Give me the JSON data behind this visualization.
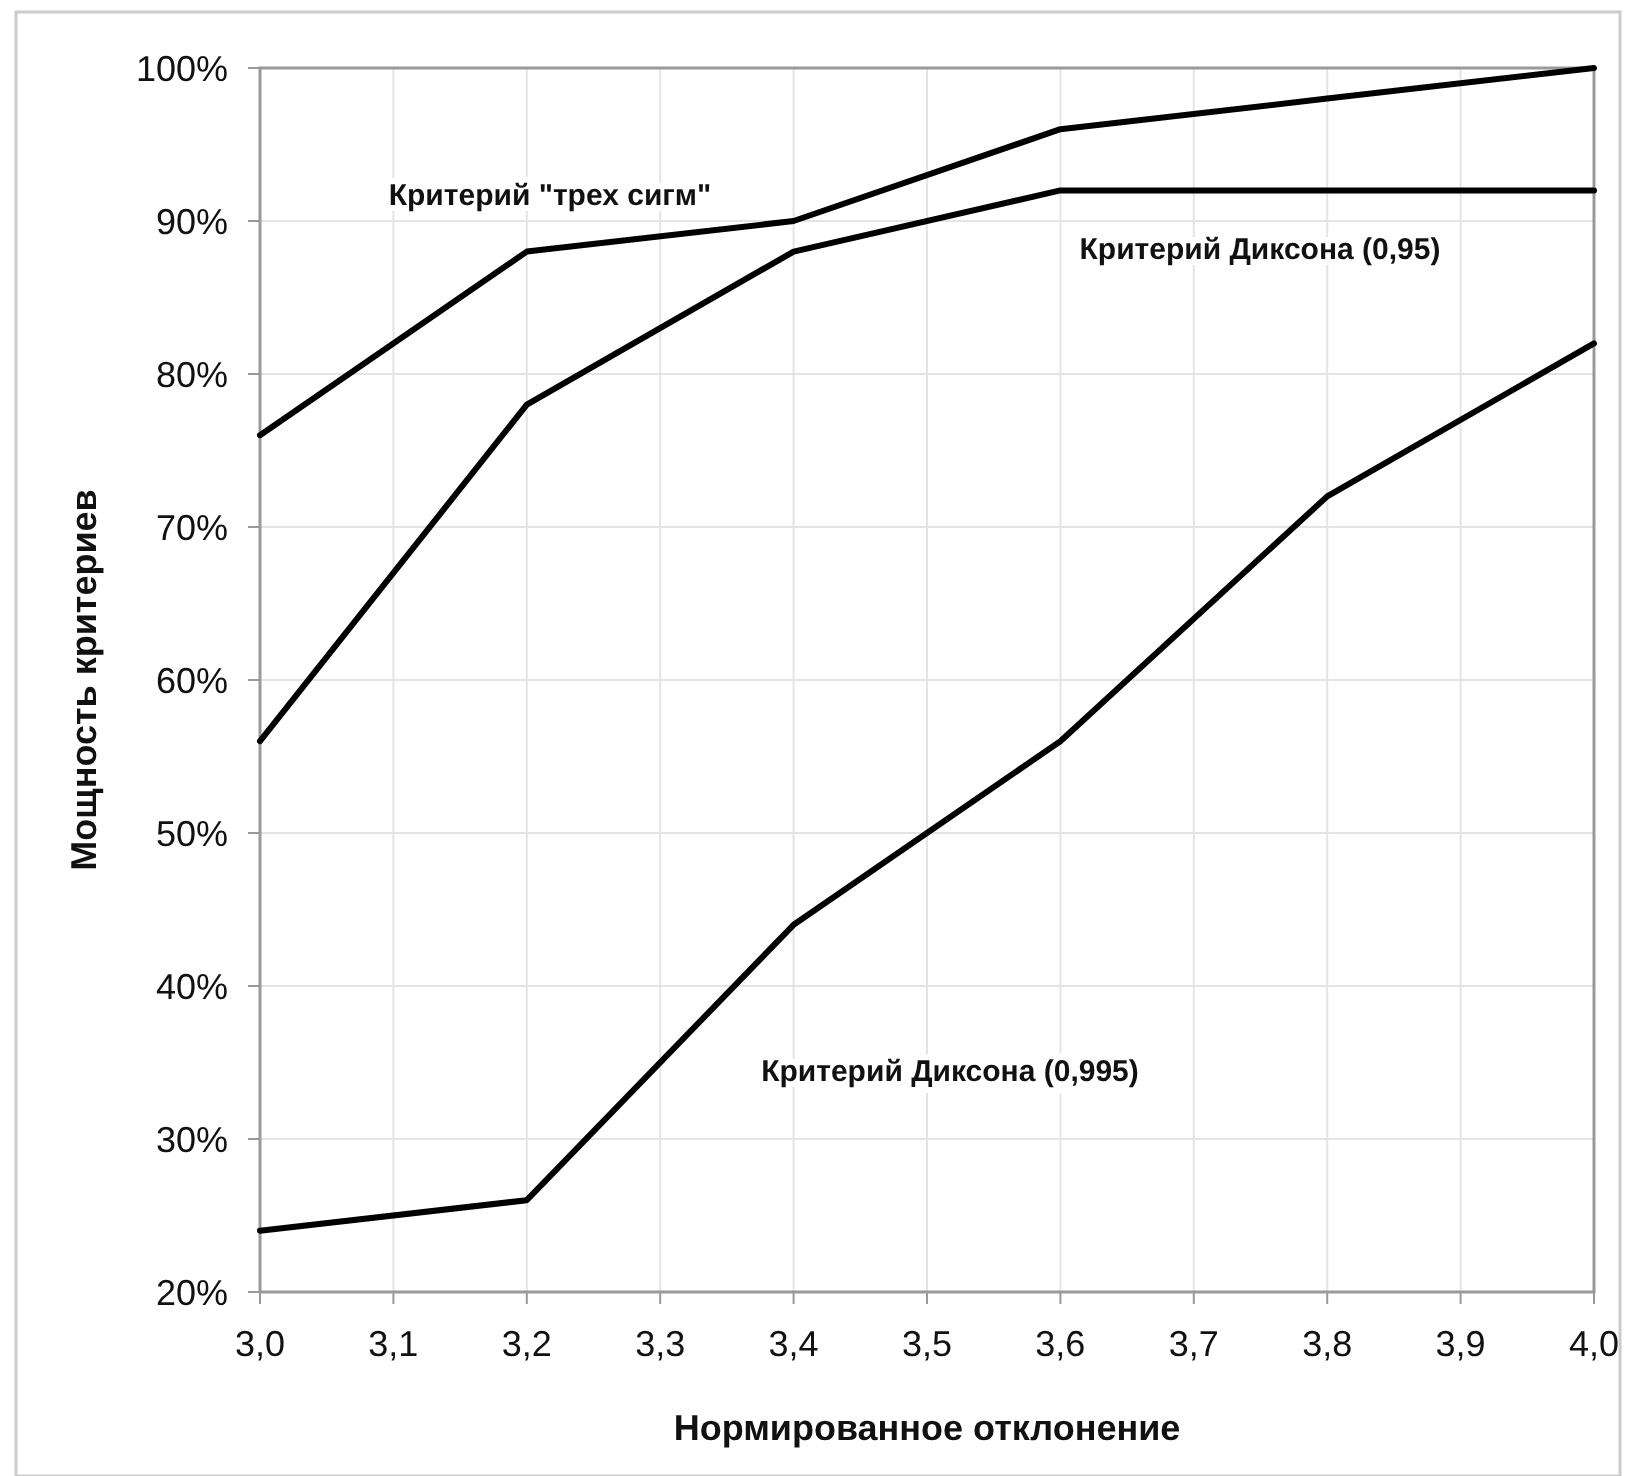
{
  "chart_data": {
    "type": "line",
    "xlabel": "Нормированное отклонение",
    "ylabel": "Мощность критериев",
    "x": [
      3.0,
      3.2,
      3.4,
      3.6,
      3.8,
      4.0
    ],
    "series": [
      {
        "name": "Критерий \"трех сигм\"",
        "color": "#000000",
        "values": [
          76,
          88,
          90,
          96,
          98,
          100
        ]
      },
      {
        "name": "Критерий Диксона (0,95)",
        "color": "#000000",
        "values": [
          56,
          78,
          88,
          92,
          92,
          92
        ]
      },
      {
        "name": "Критерий Диксона (0,995)",
        "color": "#000000",
        "values": [
          24,
          26,
          44,
          56,
          72,
          82
        ]
      }
    ],
    "xlim": [
      3.0,
      4.0
    ],
    "xticks": [
      {
        "value": 3.0,
        "label": "3,0"
      },
      {
        "value": 3.1,
        "label": "3,1"
      },
      {
        "value": 3.2,
        "label": "3,2"
      },
      {
        "value": 3.3,
        "label": "3,3"
      },
      {
        "value": 3.4,
        "label": "3,4"
      },
      {
        "value": 3.5,
        "label": "3,5"
      },
      {
        "value": 3.6,
        "label": "3,6"
      },
      {
        "value": 3.7,
        "label": "3,7"
      },
      {
        "value": 3.8,
        "label": "3,8"
      },
      {
        "value": 3.9,
        "label": "3,9"
      },
      {
        "value": 4.0,
        "label": "4,0"
      }
    ],
    "ylim": [
      20,
      100
    ],
    "yticks": [
      {
        "value": 20,
        "label": "20%"
      },
      {
        "value": 30,
        "label": "30%"
      },
      {
        "value": 40,
        "label": "40%"
      },
      {
        "value": 50,
        "label": "50%"
      },
      {
        "value": 60,
        "label": "60%"
      },
      {
        "value": 70,
        "label": "70%"
      },
      {
        "value": 80,
        "label": "80%"
      },
      {
        "value": 90,
        "label": "90%"
      },
      {
        "value": 100,
        "label": "100%"
      }
    ],
    "grid": true,
    "marker": "none",
    "line_style": "solid"
  }
}
